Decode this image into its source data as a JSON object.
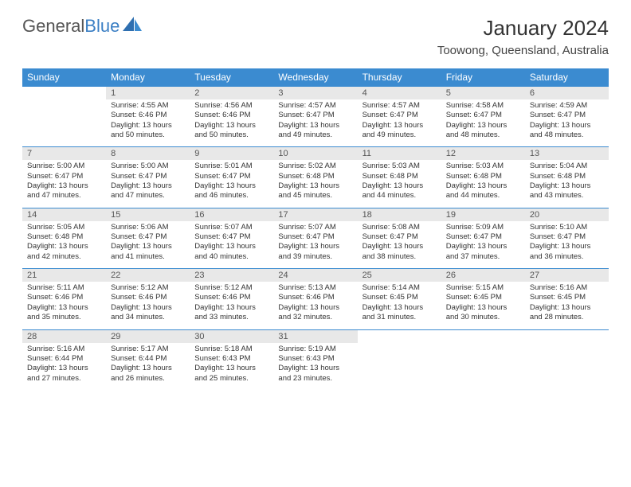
{
  "logo": {
    "word1": "General",
    "word2": "Blue"
  },
  "title": "January 2024",
  "location": "Toowong, Queensland, Australia",
  "colors": {
    "header_bg": "#3b8bd0",
    "header_text": "#ffffff",
    "daynum_bg": "#e8e8e8",
    "border": "#3b8bd0",
    "logo_blue": "#3b7fc4"
  },
  "day_headers": [
    "Sunday",
    "Monday",
    "Tuesday",
    "Wednesday",
    "Thursday",
    "Friday",
    "Saturday"
  ],
  "weeks": [
    [
      {
        "n": "",
        "sr": "",
        "ss": "",
        "dl": ""
      },
      {
        "n": "1",
        "sr": "Sunrise: 4:55 AM",
        "ss": "Sunset: 6:46 PM",
        "dl": "Daylight: 13 hours and 50 minutes."
      },
      {
        "n": "2",
        "sr": "Sunrise: 4:56 AM",
        "ss": "Sunset: 6:46 PM",
        "dl": "Daylight: 13 hours and 50 minutes."
      },
      {
        "n": "3",
        "sr": "Sunrise: 4:57 AM",
        "ss": "Sunset: 6:47 PM",
        "dl": "Daylight: 13 hours and 49 minutes."
      },
      {
        "n": "4",
        "sr": "Sunrise: 4:57 AM",
        "ss": "Sunset: 6:47 PM",
        "dl": "Daylight: 13 hours and 49 minutes."
      },
      {
        "n": "5",
        "sr": "Sunrise: 4:58 AM",
        "ss": "Sunset: 6:47 PM",
        "dl": "Daylight: 13 hours and 48 minutes."
      },
      {
        "n": "6",
        "sr": "Sunrise: 4:59 AM",
        "ss": "Sunset: 6:47 PM",
        "dl": "Daylight: 13 hours and 48 minutes."
      }
    ],
    [
      {
        "n": "7",
        "sr": "Sunrise: 5:00 AM",
        "ss": "Sunset: 6:47 PM",
        "dl": "Daylight: 13 hours and 47 minutes."
      },
      {
        "n": "8",
        "sr": "Sunrise: 5:00 AM",
        "ss": "Sunset: 6:47 PM",
        "dl": "Daylight: 13 hours and 47 minutes."
      },
      {
        "n": "9",
        "sr": "Sunrise: 5:01 AM",
        "ss": "Sunset: 6:47 PM",
        "dl": "Daylight: 13 hours and 46 minutes."
      },
      {
        "n": "10",
        "sr": "Sunrise: 5:02 AM",
        "ss": "Sunset: 6:48 PM",
        "dl": "Daylight: 13 hours and 45 minutes."
      },
      {
        "n": "11",
        "sr": "Sunrise: 5:03 AM",
        "ss": "Sunset: 6:48 PM",
        "dl": "Daylight: 13 hours and 44 minutes."
      },
      {
        "n": "12",
        "sr": "Sunrise: 5:03 AM",
        "ss": "Sunset: 6:48 PM",
        "dl": "Daylight: 13 hours and 44 minutes."
      },
      {
        "n": "13",
        "sr": "Sunrise: 5:04 AM",
        "ss": "Sunset: 6:48 PM",
        "dl": "Daylight: 13 hours and 43 minutes."
      }
    ],
    [
      {
        "n": "14",
        "sr": "Sunrise: 5:05 AM",
        "ss": "Sunset: 6:48 PM",
        "dl": "Daylight: 13 hours and 42 minutes."
      },
      {
        "n": "15",
        "sr": "Sunrise: 5:06 AM",
        "ss": "Sunset: 6:47 PM",
        "dl": "Daylight: 13 hours and 41 minutes."
      },
      {
        "n": "16",
        "sr": "Sunrise: 5:07 AM",
        "ss": "Sunset: 6:47 PM",
        "dl": "Daylight: 13 hours and 40 minutes."
      },
      {
        "n": "17",
        "sr": "Sunrise: 5:07 AM",
        "ss": "Sunset: 6:47 PM",
        "dl": "Daylight: 13 hours and 39 minutes."
      },
      {
        "n": "18",
        "sr": "Sunrise: 5:08 AM",
        "ss": "Sunset: 6:47 PM",
        "dl": "Daylight: 13 hours and 38 minutes."
      },
      {
        "n": "19",
        "sr": "Sunrise: 5:09 AM",
        "ss": "Sunset: 6:47 PM",
        "dl": "Daylight: 13 hours and 37 minutes."
      },
      {
        "n": "20",
        "sr": "Sunrise: 5:10 AM",
        "ss": "Sunset: 6:47 PM",
        "dl": "Daylight: 13 hours and 36 minutes."
      }
    ],
    [
      {
        "n": "21",
        "sr": "Sunrise: 5:11 AM",
        "ss": "Sunset: 6:46 PM",
        "dl": "Daylight: 13 hours and 35 minutes."
      },
      {
        "n": "22",
        "sr": "Sunrise: 5:12 AM",
        "ss": "Sunset: 6:46 PM",
        "dl": "Daylight: 13 hours and 34 minutes."
      },
      {
        "n": "23",
        "sr": "Sunrise: 5:12 AM",
        "ss": "Sunset: 6:46 PM",
        "dl": "Daylight: 13 hours and 33 minutes."
      },
      {
        "n": "24",
        "sr": "Sunrise: 5:13 AM",
        "ss": "Sunset: 6:46 PM",
        "dl": "Daylight: 13 hours and 32 minutes."
      },
      {
        "n": "25",
        "sr": "Sunrise: 5:14 AM",
        "ss": "Sunset: 6:45 PM",
        "dl": "Daylight: 13 hours and 31 minutes."
      },
      {
        "n": "26",
        "sr": "Sunrise: 5:15 AM",
        "ss": "Sunset: 6:45 PM",
        "dl": "Daylight: 13 hours and 30 minutes."
      },
      {
        "n": "27",
        "sr": "Sunrise: 5:16 AM",
        "ss": "Sunset: 6:45 PM",
        "dl": "Daylight: 13 hours and 28 minutes."
      }
    ],
    [
      {
        "n": "28",
        "sr": "Sunrise: 5:16 AM",
        "ss": "Sunset: 6:44 PM",
        "dl": "Daylight: 13 hours and 27 minutes."
      },
      {
        "n": "29",
        "sr": "Sunrise: 5:17 AM",
        "ss": "Sunset: 6:44 PM",
        "dl": "Daylight: 13 hours and 26 minutes."
      },
      {
        "n": "30",
        "sr": "Sunrise: 5:18 AM",
        "ss": "Sunset: 6:43 PM",
        "dl": "Daylight: 13 hours and 25 minutes."
      },
      {
        "n": "31",
        "sr": "Sunrise: 5:19 AM",
        "ss": "Sunset: 6:43 PM",
        "dl": "Daylight: 13 hours and 23 minutes."
      },
      {
        "n": "",
        "sr": "",
        "ss": "",
        "dl": ""
      },
      {
        "n": "",
        "sr": "",
        "ss": "",
        "dl": ""
      },
      {
        "n": "",
        "sr": "",
        "ss": "",
        "dl": ""
      }
    ]
  ]
}
